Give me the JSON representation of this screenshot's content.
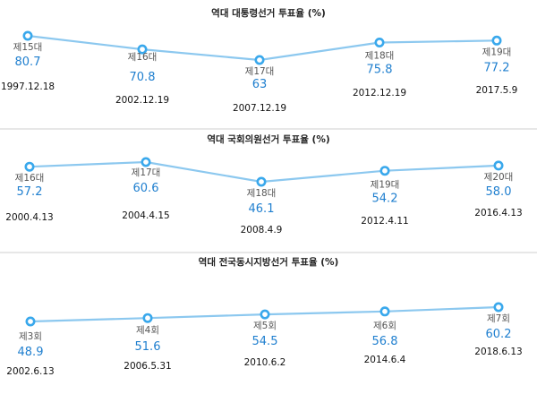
{
  "chart_data": [
    {
      "type": "line",
      "title": "역대 대통령선거 투표율 (%)",
      "categories": [
        "제15대",
        "제16대",
        "제17대",
        "제18대",
        "제19대"
      ],
      "values": [
        80.7,
        70.8,
        63,
        75.8,
        77.2
      ],
      "value_labels": [
        "80.7",
        "70.8",
        "63",
        "75.8",
        "77.2"
      ],
      "dates": [
        "1997.12.18",
        "2002.12.19",
        "2007.12.19",
        "2012.12.19",
        "2017.5.9"
      ],
      "grid": false,
      "legend": "none",
      "colors": {
        "line": "#8cc8ef",
        "marker": "#39a8ec",
        "value": "#1f7fcf"
      }
    },
    {
      "type": "line",
      "title": "역대 국회의원선거 투표율 (%)",
      "categories": [
        "제16대",
        "제17대",
        "제18대",
        "제19대",
        "제20대"
      ],
      "values": [
        57.2,
        60.6,
        46.1,
        54.2,
        58.0
      ],
      "value_labels": [
        "57.2",
        "60.6",
        "46.1",
        "54.2",
        "58.0"
      ],
      "dates": [
        "2000.4.13",
        "2004.4.15",
        "2008.4.9",
        "2012.4.11",
        "2016.4.13"
      ],
      "grid": false,
      "legend": "none",
      "colors": {
        "line": "#8cc8ef",
        "marker": "#39a8ec",
        "value": "#1f7fcf"
      }
    },
    {
      "type": "line",
      "title": "역대 전국동시지방선거 투표율 (%)",
      "categories": [
        "제3회",
        "제4회",
        "제5회",
        "제6회",
        "제7회"
      ],
      "values": [
        48.9,
        51.6,
        54.5,
        56.8,
        60.2
      ],
      "value_labels": [
        "48.9",
        "51.6",
        "54.5",
        "56.8",
        "60.2"
      ],
      "dates": [
        "2002.6.13",
        "2006.5.31",
        "2010.6.2",
        "2014.6.4",
        "2018.6.13"
      ],
      "grid": false,
      "legend": "none",
      "colors": {
        "line": "#8cc8ef",
        "marker": "#39a8ec",
        "value": "#1f7fcf"
      }
    }
  ]
}
